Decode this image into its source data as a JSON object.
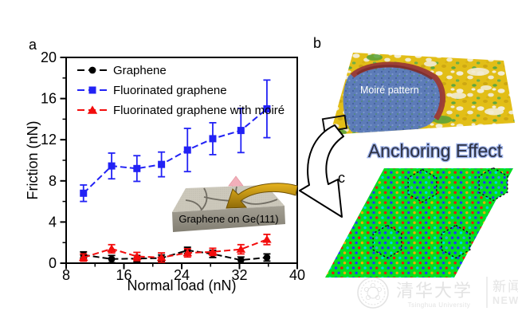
{
  "panel_a": {
    "label": "a"
  },
  "panel_b": {
    "label": "b",
    "annotation": "Moiré pattern",
    "caption": "Anchoring Effect"
  },
  "panel_c": {
    "label": "c"
  },
  "watermark": {
    "org_cn": "清华大学",
    "org_en": "Tsinghua University",
    "news_cn": "新闻",
    "news_en": "NEWS"
  },
  "colors": {
    "lattice_green": "#00e020",
    "afm_yellow": "#e2be17",
    "moire_blue": "#5d7cb8",
    "moire_rim": "#9b3a34",
    "anchoring_text": "#2e3140",
    "anchoring_glow": "#9db2ea"
  },
  "chart_data": {
    "type": "line",
    "title": "",
    "xlabel": "Normal load (nN)",
    "ylabel": "Friction (nN)",
    "xlim": [
      8,
      40
    ],
    "ylim": [
      0,
      20
    ],
    "x_ticks": [
      8,
      16,
      24,
      32,
      40
    ],
    "x_minor_ticks": [
      12,
      20,
      28,
      36
    ],
    "y_ticks": [
      0,
      4,
      8,
      12,
      16,
      20
    ],
    "y_minor_ticks": [
      2,
      6,
      10,
      14,
      18
    ],
    "grid": false,
    "legend_position": "top-left",
    "inset_caption": "Graphene on Ge(111)",
    "x": [
      10.4,
      14.3,
      17.8,
      21.2,
      24.8,
      28.3,
      32.2,
      35.8
    ],
    "series": [
      {
        "name": "Graphene",
        "color": "#000000",
        "marker": "circle",
        "values": [
          0.8,
          0.4,
          0.45,
          0.5,
          1.25,
          0.9,
          0.3,
          0.55
        ],
        "errors": [
          0.3,
          0.35,
          0.3,
          0.3,
          0.3,
          0.35,
          0.3,
          0.35
        ]
      },
      {
        "name": "Fluorinated graphene",
        "color": "#2222f5",
        "marker": "square",
        "values": [
          6.8,
          9.45,
          9.2,
          9.6,
          11.0,
          12.1,
          12.9,
          15.0
        ],
        "errors": [
          0.8,
          1.25,
          1.25,
          1.2,
          2.1,
          1.55,
          2.15,
          2.8
        ]
      },
      {
        "name": "Fluorinated graphene with moiré",
        "color": "#f20d0d",
        "marker": "triangle",
        "values": [
          0.55,
          1.4,
          0.65,
          0.55,
          1.0,
          1.1,
          1.35,
          2.3
        ],
        "errors": [
          0.35,
          0.4,
          0.4,
          0.45,
          0.4,
          0.35,
          0.45,
          0.5
        ]
      }
    ]
  }
}
